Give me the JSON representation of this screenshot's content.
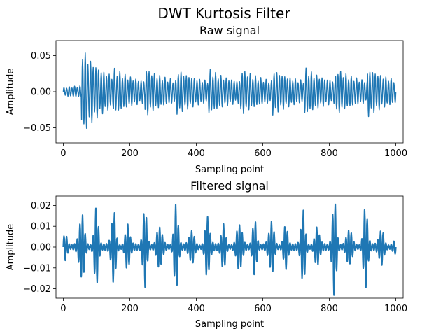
{
  "figure": {
    "title": "DWT Kurtosis Filter"
  },
  "chart_data": [
    {
      "type": "line",
      "title": "Raw signal",
      "xlabel": "Sampling point",
      "ylabel": "Amplitude",
      "xlim": [
        -22,
        1022
      ],
      "ylim": [
        -0.071,
        0.071
      ],
      "x_ticks": [
        0,
        200,
        400,
        600,
        800,
        1000
      ],
      "x_tick_labels": [
        "0",
        "200",
        "400",
        "600",
        "800",
        "1000"
      ],
      "y_ticks": [
        -0.05,
        0.0,
        0.05
      ],
      "y_tick_labels": [
        "−0.05",
        "0.00",
        "0.05"
      ],
      "grid": false,
      "series": [
        {
          "color": "#1f77b4",
          "signal_model": "periodic decaying impulse responses",
          "n_points": 1001,
          "impulse_positions": [
            0,
            55,
            151,
            246,
            342,
            437,
            533,
            628,
            724,
            819,
            915
          ],
          "impulse_amplitudes": [
            0.006,
            0.064,
            0.034,
            0.035,
            0.033,
            0.033,
            0.034,
            0.034,
            0.035,
            0.034,
            0.036
          ],
          "decay_per_sample": 0.985,
          "cycle_length_samples": 8,
          "floor_amplitude": 0.01,
          "min_value": -0.064,
          "max_value": 0.064
        }
      ]
    },
    {
      "type": "line",
      "title": "Filtered signal",
      "xlabel": "Sampling point",
      "ylabel": "Amplitude",
      "xlim": [
        -22,
        1022
      ],
      "ylim": [
        -0.0245,
        0.0245
      ],
      "x_ticks": [
        0,
        200,
        400,
        600,
        800,
        1000
      ],
      "x_tick_labels": [
        "0",
        "200",
        "400",
        "600",
        "800",
        "1000"
      ],
      "y_ticks": [
        -0.02,
        -0.01,
        0.0,
        0.01,
        0.02
      ],
      "y_tick_labels": [
        "−0.02",
        "−0.01",
        "0.00",
        "0.01",
        "0.02"
      ],
      "grid": false,
      "series": [
        {
          "color": "#1f77b4",
          "signal_model": "band-limited bursts around impulses",
          "n_points": 1001,
          "burst_centers": [
            5,
            55,
            100,
            150,
            195,
            245,
            290,
            340,
            385,
            435,
            480,
            530,
            575,
            625,
            670,
            720,
            765,
            815,
            860,
            910,
            955,
            1000
          ],
          "burst_amplitudes": [
            0.005,
            0.022,
            0.018,
            0.019,
            0.012,
            0.018,
            0.014,
            0.02,
            0.01,
            0.017,
            0.011,
            0.016,
            0.012,
            0.016,
            0.01,
            0.018,
            0.011,
            0.022,
            0.012,
            0.02,
            0.01,
            0.002
          ],
          "cycle_length_samples": 8,
          "min_value": -0.022,
          "max_value": 0.0225
        }
      ]
    }
  ]
}
